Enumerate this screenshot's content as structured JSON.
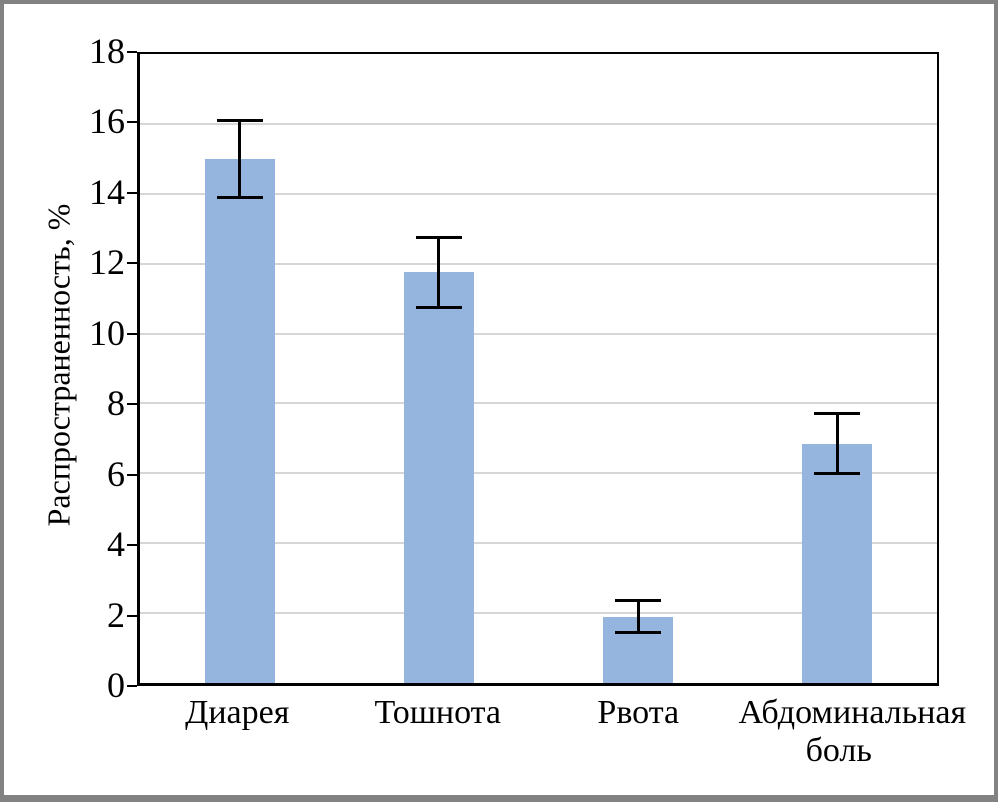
{
  "chart_data": {
    "type": "bar",
    "categories": [
      "Диарея",
      "Тошнота",
      "Рвота",
      "Абдоминальная боль"
    ],
    "values": [
      15.0,
      11.75,
      1.9,
      6.85
    ],
    "error_bars": [
      1.1,
      1.0,
      0.45,
      0.85
    ],
    "title": "",
    "xlabel": "",
    "ylabel": "Распространенность, %",
    "ylim": [
      0,
      18
    ],
    "yticks": [
      0,
      2,
      4,
      6,
      8,
      10,
      12,
      14,
      16,
      18
    ],
    "grid": true,
    "legend": null,
    "bar_color": "#95b5de",
    "gridline_color": "#d6d6d6",
    "axis_color": "#000000",
    "frame_border_color": "#828282"
  }
}
